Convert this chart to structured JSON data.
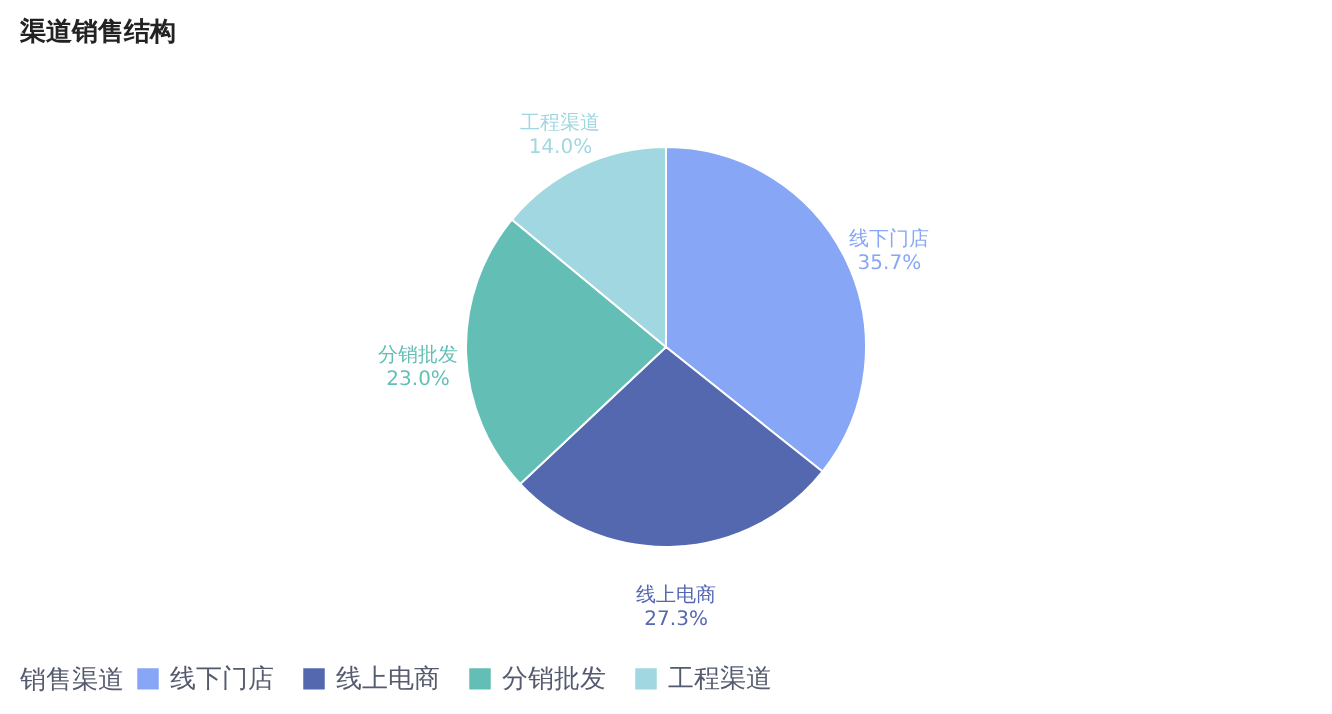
{
  "chart_data": {
    "type": "pie",
    "title": "渠道销售结构",
    "legend_title": "销售渠道",
    "legend": "bottom",
    "categories": [
      "线下门店",
      "线上电商",
      "分销批发",
      "工程渠道"
    ],
    "values": [
      35.7,
      27.3,
      23.0,
      14.0
    ],
    "value_labels": [
      "35.7%",
      "27.3%",
      "23.0%",
      "14.0%"
    ],
    "colors": [
      "#87a6f6",
      "#5468b0",
      "#63bfb6",
      "#a0d7e0"
    ]
  }
}
